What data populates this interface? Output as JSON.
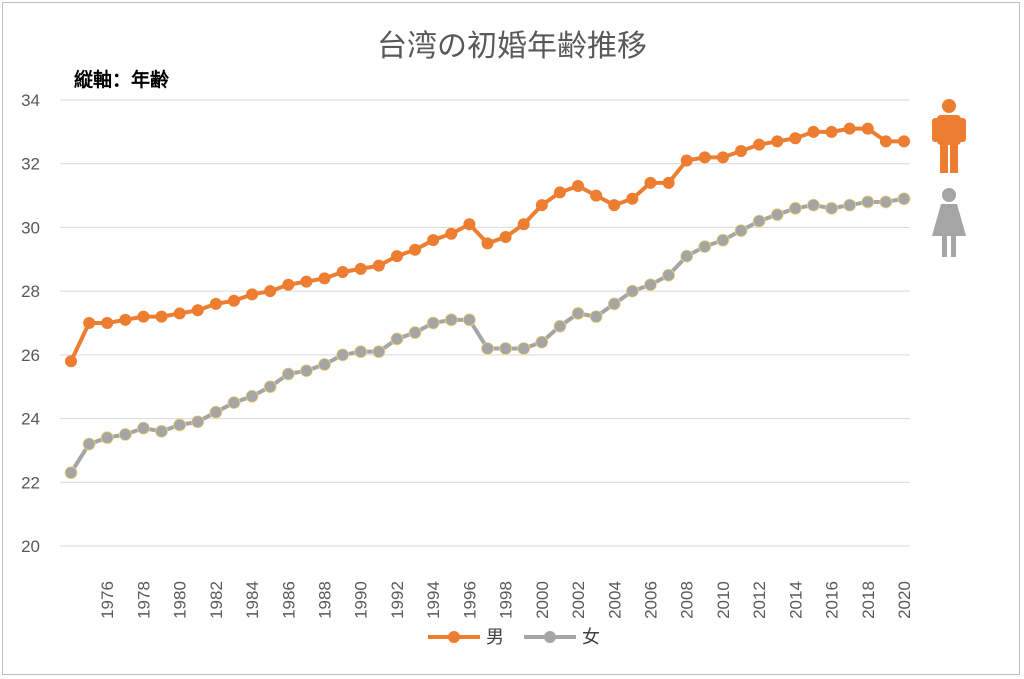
{
  "chart_data": {
    "type": "line",
    "title": "台湾の初婚年齢推移",
    "ylabel": "縦軸：年齢",
    "xlabel": "",
    "ylim": [
      20,
      34
    ],
    "yticks": [
      "20",
      "22",
      "24",
      "26",
      "28",
      "30",
      "32",
      "34"
    ],
    "grid": true,
    "legend_position": "bottom",
    "x": [
      1974,
      1975,
      1976,
      1977,
      1978,
      1979,
      1980,
      1981,
      1982,
      1983,
      1984,
      1985,
      1986,
      1987,
      1988,
      1989,
      1990,
      1991,
      1992,
      1993,
      1994,
      1995,
      1996,
      1997,
      1998,
      1999,
      2000,
      2001,
      2002,
      2003,
      2004,
      2005,
      2006,
      2007,
      2008,
      2009,
      2010,
      2011,
      2012,
      2013,
      2014,
      2015,
      2016,
      2017,
      2018,
      2019,
      2020
    ],
    "xtick_labels": [
      "1976",
      "1978",
      "1980",
      "1982",
      "1984",
      "1986",
      "1988",
      "1990",
      "1992",
      "1994",
      "1996",
      "1998",
      "2000",
      "2002",
      "2004",
      "2006",
      "2008",
      "2010",
      "2012",
      "2014",
      "2016",
      "2018",
      "2020"
    ],
    "series": [
      {
        "name": "男",
        "color": "#ED7D31",
        "icon": "man-icon",
        "values": [
          25.8,
          27.0,
          27.0,
          27.1,
          27.2,
          27.2,
          27.3,
          27.4,
          27.6,
          27.7,
          27.9,
          28.0,
          28.2,
          28.3,
          28.4,
          28.6,
          28.7,
          28.8,
          29.1,
          29.3,
          29.6,
          29.8,
          30.1,
          29.5,
          29.7,
          30.1,
          30.7,
          31.1,
          31.3,
          31.0,
          30.7,
          30.9,
          31.4,
          31.4,
          32.1,
          32.2,
          32.2,
          32.4,
          32.6,
          32.7,
          32.8,
          33.0,
          33.0,
          33.1,
          33.1,
          32.7,
          32.7
        ]
      },
      {
        "name": "女",
        "color": "#A5A5A5",
        "icon": "woman-icon",
        "values": [
          22.3,
          23.2,
          23.4,
          23.5,
          23.7,
          23.6,
          23.8,
          23.9,
          24.2,
          24.5,
          24.7,
          25.0,
          25.4,
          25.5,
          25.7,
          26.0,
          26.1,
          26.1,
          26.5,
          26.7,
          27.0,
          27.1,
          27.1,
          26.2,
          26.2,
          26.2,
          26.4,
          26.9,
          27.3,
          27.2,
          27.6,
          28.0,
          28.2,
          28.5,
          29.1,
          29.4,
          29.6,
          29.9,
          30.2,
          30.4,
          30.6,
          30.7,
          30.6,
          30.7,
          30.8,
          30.8,
          30.9
        ]
      }
    ]
  }
}
